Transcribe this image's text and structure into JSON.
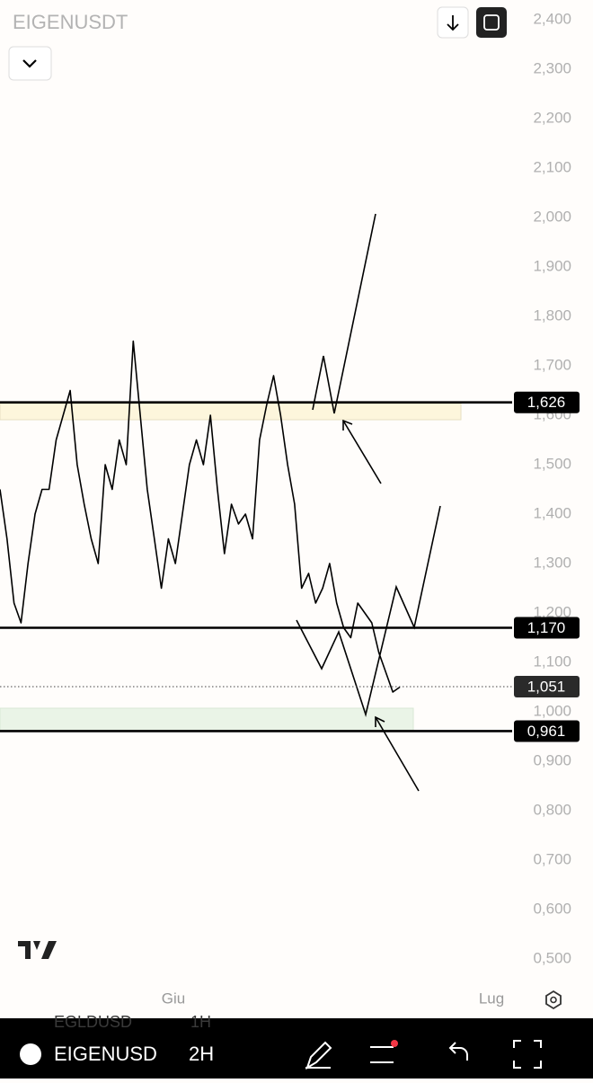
{
  "chart_data": {
    "type": "line",
    "title": "EIGENUSDT",
    "color": "#000000",
    "values": [
      1.45,
      1.35,
      1.22,
      1.18,
      1.3,
      1.4,
      1.45,
      1.45,
      1.55,
      1.6,
      1.65,
      1.5,
      1.42,
      1.35,
      1.3,
      1.5,
      1.45,
      1.55,
      1.5,
      1.75,
      1.6,
      1.45,
      1.35,
      1.25,
      1.35,
      1.3,
      1.4,
      1.5,
      1.55,
      1.5,
      1.6,
      1.45,
      1.32,
      1.42,
      1.38,
      1.4,
      1.35,
      1.55,
      1.62,
      1.68,
      1.6,
      1.5,
      1.42,
      1.25,
      1.28,
      1.22,
      1.25,
      1.3,
      1.22,
      1.17,
      1.15,
      1.22,
      1.2,
      1.18,
      1.12,
      1.08,
      1.04,
      1.05
    ],
    "ylim": [
      0.44,
      2.44
    ],
    "yticks": [
      {
        "value": 2.4,
        "label": "2,400"
      },
      {
        "value": 2.3,
        "label": "2,300"
      },
      {
        "value": 2.2,
        "label": "2,200"
      },
      {
        "value": 2.1,
        "label": "2,100"
      },
      {
        "value": 2.0,
        "label": "2,000"
      },
      {
        "value": 1.9,
        "label": "1,900"
      },
      {
        "value": 1.8,
        "label": "1,800"
      },
      {
        "value": 1.7,
        "label": "1,700"
      },
      {
        "value": 1.6,
        "label": "1,600"
      },
      {
        "value": 1.5,
        "label": "1,500"
      },
      {
        "value": 1.4,
        "label": "1,400"
      },
      {
        "value": 1.3,
        "label": "1,300"
      },
      {
        "value": 1.2,
        "label": "1,200"
      },
      {
        "value": 1.1,
        "label": "1,100"
      },
      {
        "value": 1.0,
        "label": "1,000"
      },
      {
        "value": 0.9,
        "label": "0,900"
      },
      {
        "value": 0.8,
        "label": "0,800"
      },
      {
        "value": 0.7,
        "label": "0,700"
      },
      {
        "value": 0.6,
        "label": "0,600"
      },
      {
        "value": 0.5,
        "label": "0,500"
      }
    ],
    "xtick_labels": [
      "Giu",
      "Lug"
    ],
    "levels": [
      {
        "value": 1.626,
        "label": "1,626"
      },
      {
        "value": 1.17,
        "label": "1,170"
      },
      {
        "value": 0.961,
        "label": "0,961"
      }
    ],
    "last_price": {
      "value": 1.051,
      "label": "1,051"
    }
  },
  "toolbar": {
    "ghost_symbol": "EGLDUSD",
    "ghost_interval": "1H",
    "symbol": "EIGENUSD",
    "interval": "2H"
  }
}
